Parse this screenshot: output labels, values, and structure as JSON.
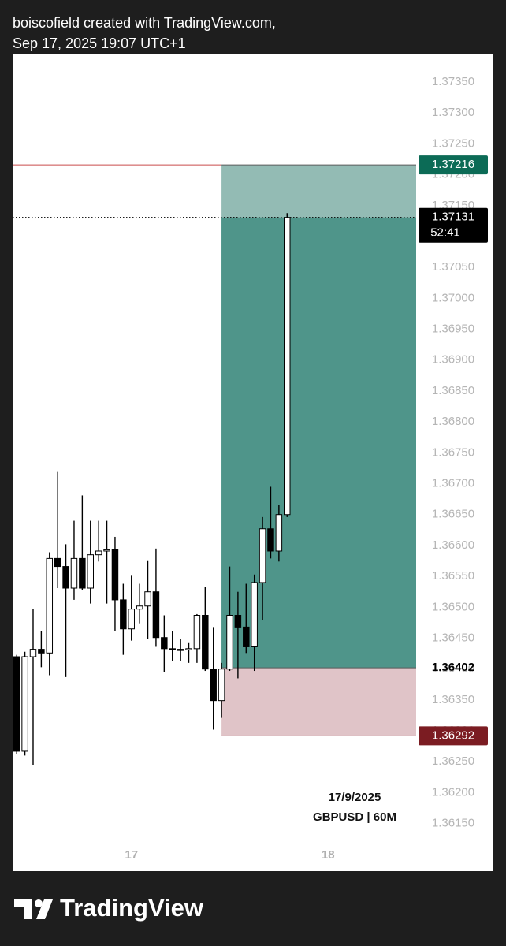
{
  "chart_data": {
    "type": "candlestick",
    "title": "boiscofield created with TradingView.com,",
    "subtitle": "Sep 17, 2025 19:07 UTC+1",
    "x": [
      0,
      1,
      2,
      3,
      4,
      5,
      6,
      7,
      8,
      9,
      10,
      11,
      12,
      13,
      14,
      15,
      16,
      17,
      18,
      19,
      20,
      21,
      22,
      23,
      24,
      25,
      26,
      27,
      28,
      29,
      30,
      31,
      32,
      33
    ],
    "open": [
      1.3642,
      1.36267,
      1.3642,
      1.36432,
      1.36426,
      1.36579,
      1.36566,
      1.36531,
      1.36579,
      1.36531,
      1.36585,
      1.36591,
      1.36593,
      1.36512,
      1.36465,
      1.36497,
      1.36502,
      1.36525,
      1.36451,
      1.36433,
      1.36432,
      1.36431,
      1.36433,
      1.36487,
      1.364,
      1.36349,
      1.364,
      1.36487,
      1.36468,
      1.36436,
      1.3654,
      1.36627,
      1.36591,
      1.3665
    ],
    "high": [
      1.36423,
      1.36428,
      1.36497,
      1.36461,
      1.36589,
      1.36719,
      1.36602,
      1.3664,
      1.36681,
      1.3664,
      1.3664,
      1.3664,
      1.36614,
      1.36538,
      1.36551,
      1.36538,
      1.36576,
      1.36595,
      1.36487,
      1.36461,
      1.36449,
      1.36442,
      1.36489,
      1.36533,
      1.36468,
      1.3641,
      1.36566,
      1.36525,
      1.36538,
      1.36553,
      1.36646,
      1.36695,
      1.36665,
      1.37138
    ],
    "low": [
      1.36263,
      1.3626,
      1.36244,
      1.36403,
      1.3639,
      1.36531,
      1.36387,
      1.36512,
      1.36528,
      1.36506,
      1.36574,
      1.36506,
      1.36461,
      1.36423,
      1.36446,
      1.36474,
      1.36449,
      1.36436,
      1.36395,
      1.36413,
      1.36413,
      1.3641,
      1.3641,
      1.36397,
      1.36302,
      1.36321,
      1.36397,
      1.36385,
      1.36426,
      1.36397,
      1.3648,
      1.36579,
      1.36574,
      1.36646
    ],
    "close": [
      1.36267,
      1.3642,
      1.36432,
      1.36426,
      1.36579,
      1.36566,
      1.36531,
      1.36579,
      1.36531,
      1.36585,
      1.36591,
      1.36593,
      1.36512,
      1.36465,
      1.36497,
      1.36502,
      1.36525,
      1.36451,
      1.36433,
      1.36432,
      1.36431,
      1.36433,
      1.36487,
      1.364,
      1.36349,
      1.364,
      1.36487,
      1.36468,
      1.36436,
      1.3654,
      1.36627,
      1.36591,
      1.3665,
      1.37131
    ],
    "up_color": "#ffffff",
    "down_color": "#000000",
    "xlim": [
      -0.5,
      48.75
    ],
    "xticks": [
      {
        "value": 14,
        "label": "17"
      },
      {
        "value": 38,
        "label": "18"
      }
    ],
    "ylim": [
      1.36073,
      1.37396
    ],
    "yticks": [
      {
        "value": 1.3735,
        "label": "1.37350"
      },
      {
        "value": 1.373,
        "label": "1.37300"
      },
      {
        "value": 1.3725,
        "label": "1.37250"
      },
      {
        "value": 1.372,
        "label": "1.37200"
      },
      {
        "value": 1.3715,
        "label": "1.37150"
      },
      {
        "value": 1.371,
        "label": "1.37100"
      },
      {
        "value": 1.3705,
        "label": "1.37050"
      },
      {
        "value": 1.37,
        "label": "1.37000"
      },
      {
        "value": 1.3695,
        "label": "1.36950"
      },
      {
        "value": 1.369,
        "label": "1.36900"
      },
      {
        "value": 1.3685,
        "label": "1.36850"
      },
      {
        "value": 1.368,
        "label": "1.36800"
      },
      {
        "value": 1.3675,
        "label": "1.36750"
      },
      {
        "value": 1.367,
        "label": "1.36700"
      },
      {
        "value": 1.3665,
        "label": "1.36650"
      },
      {
        "value": 1.366,
        "label": "1.36600"
      },
      {
        "value": 1.3655,
        "label": "1.36550"
      },
      {
        "value": 1.365,
        "label": "1.36500"
      },
      {
        "value": 1.3645,
        "label": "1.36450"
      },
      {
        "value": 1.364,
        "label": "1.36400"
      },
      {
        "value": 1.3635,
        "label": "1.36350"
      },
      {
        "value": 1.363,
        "label": "1.36300"
      },
      {
        "value": 1.3625,
        "label": "1.36250"
      },
      {
        "value": 1.362,
        "label": "1.36200"
      },
      {
        "value": 1.3615,
        "label": "1.36150"
      }
    ],
    "grid": false,
    "countdown": "52:41",
    "position": {
      "x_start": 25,
      "entry": 1.36402,
      "target": 1.37216,
      "stop": 1.36292,
      "target_color": "#93bbb4",
      "profit_color": "#4f958a",
      "stop_color": "#e0c4c8",
      "target_label_color": "#0c6b56",
      "stop_label_color": "#7b1c22",
      "target_line_color": "#c94b4b"
    },
    "annotations": [
      "17/9/2025",
      "GBPUSD | 60M"
    ],
    "brand": "TradingView"
  }
}
